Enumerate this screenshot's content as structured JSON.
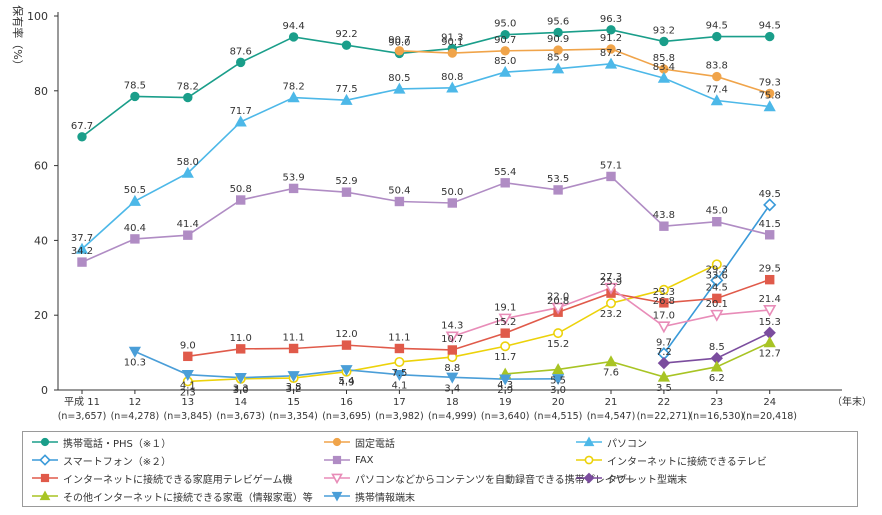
{
  "chart_data": {
    "type": "line",
    "ylabel": "保有率（%）",
    "xunit": "（年末）",
    "ylim": [
      0,
      100
    ],
    "yticks": [
      0,
      20,
      40,
      60,
      80,
      100
    ],
    "categories": [
      "平成 11",
      "12",
      "13",
      "14",
      "15",
      "16",
      "17",
      "18",
      "19",
      "20",
      "21",
      "22",
      "23",
      "24"
    ],
    "sample_sizes": [
      "(n=3,657)",
      "(n=4,278)",
      "(n=3,845)",
      "(n=3,673)",
      "(n=3,354)",
      "(n=3,695)",
      "(n=3,982)",
      "(n=4,999)",
      "(n=3,640)",
      "(n=4,515)",
      "(n=4,547)",
      "(n=22,271)",
      "(n=16,530)",
      "(n=20,418)"
    ],
    "series": [
      {
        "name": "携帯電話・PHS（※１）",
        "color": "#1a9e8a",
        "marker": "circle",
        "filled": true,
        "values": [
          67.7,
          78.5,
          78.2,
          87.6,
          94.4,
          92.2,
          90.0,
          91.3,
          95.0,
          95.6,
          96.3,
          93.2,
          94.5,
          94.5
        ]
      },
      {
        "name": "固定電話",
        "color": "#f0a44a",
        "marker": "circle",
        "filled": true,
        "values": [
          null,
          null,
          null,
          null,
          null,
          null,
          90.7,
          90.1,
          90.7,
          90.9,
          91.2,
          85.8,
          83.8,
          79.3
        ]
      },
      {
        "name": "パソコン",
        "color": "#4db8e8",
        "marker": "triangle",
        "filled": true,
        "values": [
          37.7,
          50.5,
          58.0,
          71.7,
          78.2,
          77.5,
          80.5,
          80.8,
          85.0,
          85.9,
          87.2,
          83.4,
          77.4,
          75.8
        ]
      },
      {
        "name": "スマートフォン（※２）",
        "color": "#3a9ad9",
        "marker": "diamond",
        "filled": false,
        "values": [
          null,
          null,
          null,
          null,
          null,
          null,
          null,
          null,
          null,
          null,
          null,
          9.7,
          29.3,
          49.5
        ]
      },
      {
        "name": "FAX",
        "color": "#b08cc4",
        "marker": "square",
        "filled": true,
        "values": [
          34.2,
          40.4,
          41.4,
          50.8,
          53.9,
          52.9,
          50.4,
          50.0,
          55.4,
          53.5,
          57.1,
          43.8,
          45.0,
          41.5
        ]
      },
      {
        "name": "インターネットに接続できるテレビ",
        "color": "#ecd20a",
        "marker": "circle",
        "filled": false,
        "values": [
          null,
          null,
          2.3,
          3.0,
          3.2,
          4.9,
          7.5,
          8.8,
          11.7,
          15.2,
          23.2,
          26.8,
          33.6,
          null
        ]
      },
      {
        "name": "インターネットに接続できる家庭用テレビゲーム機",
        "color": "#e05a4a",
        "marker": "square",
        "filled": true,
        "values": [
          null,
          null,
          9.0,
          11.0,
          11.1,
          12.0,
          11.1,
          10.7,
          15.2,
          20.8,
          25.9,
          23.3,
          24.5,
          29.5
        ]
      },
      {
        "name": "パソコンなどからコンテンツを自動録音できる携帯プレイヤー",
        "color": "#e88cb8",
        "marker": "triangle-down",
        "filled": false,
        "values": [
          null,
          null,
          null,
          null,
          null,
          null,
          null,
          14.3,
          19.1,
          22.0,
          27.3,
          17.0,
          20.1,
          21.4
        ]
      },
      {
        "name": "タブレット型端末",
        "color": "#7b4d9e",
        "marker": "diamond",
        "filled": true,
        "values": [
          null,
          null,
          null,
          null,
          null,
          null,
          null,
          null,
          null,
          null,
          null,
          7.2,
          8.5,
          15.3
        ]
      },
      {
        "name": "その他インターネットに接続できる家電（情報家電）等",
        "color": "#a8c424",
        "marker": "triangle",
        "filled": true,
        "values": [
          null,
          null,
          null,
          null,
          null,
          null,
          null,
          null,
          4.3,
          5.5,
          7.6,
          3.5,
          6.2,
          12.7
        ]
      },
      {
        "name": "携帯情報端末",
        "color": "#4a9ed8",
        "marker": "triangle-down",
        "filled": true,
        "values": [
          null,
          10.3,
          4.1,
          3.3,
          3.8,
          5.4,
          4.1,
          3.4,
          2.9,
          3.0,
          null,
          null,
          null,
          null
        ]
      }
    ],
    "data_labels": [
      {
        "s": 0,
        "i": 0,
        "t": "67.7"
      },
      {
        "s": 0,
        "i": 1,
        "t": "78.5"
      },
      {
        "s": 0,
        "i": 2,
        "t": "78.2"
      },
      {
        "s": 0,
        "i": 3,
        "t": "87.6"
      },
      {
        "s": 0,
        "i": 4,
        "t": "94.4"
      },
      {
        "s": 0,
        "i": 5,
        "t": "92.2"
      },
      {
        "s": 0,
        "i": 6,
        "t": "90.0"
      },
      {
        "s": 0,
        "i": 7,
        "t": "91.3"
      },
      {
        "s": 0,
        "i": 8,
        "t": "95.0"
      },
      {
        "s": 0,
        "i": 9,
        "t": "95.6"
      },
      {
        "s": 0,
        "i": 10,
        "t": "96.3"
      },
      {
        "s": 0,
        "i": 11,
        "t": "93.2"
      },
      {
        "s": 0,
        "i": 12,
        "t": "94.5"
      },
      {
        "s": 0,
        "i": 13,
        "t": "94.5"
      },
      {
        "s": 1,
        "i": 6,
        "t": "90.7"
      },
      {
        "s": 1,
        "i": 7,
        "t": "90.1"
      },
      {
        "s": 1,
        "i": 8,
        "t": "90.7"
      },
      {
        "s": 1,
        "i": 9,
        "t": "90.9"
      },
      {
        "s": 1,
        "i": 10,
        "t": "91.2"
      },
      {
        "s": 1,
        "i": 11,
        "t": "85.8"
      },
      {
        "s": 1,
        "i": 12,
        "t": "83.8"
      },
      {
        "s": 1,
        "i": 13,
        "t": "79.3"
      },
      {
        "s": 2,
        "i": 0,
        "t": "37.7"
      },
      {
        "s": 2,
        "i": 1,
        "t": "50.5"
      },
      {
        "s": 2,
        "i": 2,
        "t": "58.0"
      },
      {
        "s": 2,
        "i": 3,
        "t": "71.7"
      },
      {
        "s": 2,
        "i": 4,
        "t": "78.2"
      },
      {
        "s": 2,
        "i": 5,
        "t": "77.5"
      },
      {
        "s": 2,
        "i": 6,
        "t": "80.5"
      },
      {
        "s": 2,
        "i": 7,
        "t": "80.8"
      },
      {
        "s": 2,
        "i": 8,
        "t": "85.0"
      },
      {
        "s": 2,
        "i": 9,
        "t": "85.9"
      },
      {
        "s": 2,
        "i": 10,
        "t": "87.2"
      },
      {
        "s": 2,
        "i": 11,
        "t": "83.4"
      },
      {
        "s": 2,
        "i": 12,
        "t": "77.4"
      },
      {
        "s": 2,
        "i": 13,
        "t": "75.8"
      },
      {
        "s": 3,
        "i": 11,
        "t": "9.7"
      },
      {
        "s": 3,
        "i": 12,
        "t": "29.3"
      },
      {
        "s": 3,
        "i": 13,
        "t": "49.5"
      },
      {
        "s": 4,
        "i": 0,
        "t": "34.2"
      },
      {
        "s": 4,
        "i": 1,
        "t": "40.4"
      },
      {
        "s": 4,
        "i": 2,
        "t": "41.4"
      },
      {
        "s": 4,
        "i": 3,
        "t": "50.8"
      },
      {
        "s": 4,
        "i": 4,
        "t": "53.9"
      },
      {
        "s": 4,
        "i": 5,
        "t": "52.9"
      },
      {
        "s": 4,
        "i": 6,
        "t": "50.4"
      },
      {
        "s": 4,
        "i": 7,
        "t": "50.0"
      },
      {
        "s": 4,
        "i": 8,
        "t": "55.4"
      },
      {
        "s": 4,
        "i": 9,
        "t": "53.5"
      },
      {
        "s": 4,
        "i": 10,
        "t": "57.1"
      },
      {
        "s": 4,
        "i": 11,
        "t": "43.8"
      },
      {
        "s": 4,
        "i": 12,
        "t": "45.0"
      },
      {
        "s": 4,
        "i": 13,
        "t": "41.5"
      },
      {
        "s": 5,
        "i": 2,
        "t": "2.3"
      },
      {
        "s": 5,
        "i": 3,
        "t": "3.0"
      },
      {
        "s": 5,
        "i": 4,
        "t": "3.2"
      },
      {
        "s": 5,
        "i": 5,
        "t": "4.9"
      },
      {
        "s": 5,
        "i": 6,
        "t": "7.5"
      },
      {
        "s": 5,
        "i": 7,
        "t": "8.8"
      },
      {
        "s": 5,
        "i": 8,
        "t": "11.7"
      },
      {
        "s": 5,
        "i": 9,
        "t": "15.2"
      },
      {
        "s": 5,
        "i": 10,
        "t": "23.2"
      },
      {
        "s": 5,
        "i": 11,
        "t": "26.8"
      },
      {
        "s": 5,
        "i": 12,
        "t": "33.6"
      },
      {
        "s": 6,
        "i": 2,
        "t": "9.0"
      },
      {
        "s": 6,
        "i": 3,
        "t": "11.0"
      },
      {
        "s": 6,
        "i": 4,
        "t": "11.1"
      },
      {
        "s": 6,
        "i": 5,
        "t": "12.0"
      },
      {
        "s": 6,
        "i": 6,
        "t": "11.1"
      },
      {
        "s": 6,
        "i": 7,
        "t": "10.7"
      },
      {
        "s": 6,
        "i": 8,
        "t": "15.2"
      },
      {
        "s": 6,
        "i": 9,
        "t": "20.8"
      },
      {
        "s": 6,
        "i": 10,
        "t": "25.9"
      },
      {
        "s": 6,
        "i": 11,
        "t": "23.3"
      },
      {
        "s": 6,
        "i": 12,
        "t": "24.5"
      },
      {
        "s": 6,
        "i": 13,
        "t": "29.5"
      },
      {
        "s": 7,
        "i": 7,
        "t": "14.3"
      },
      {
        "s": 7,
        "i": 8,
        "t": "19.1"
      },
      {
        "s": 7,
        "i": 9,
        "t": "22.0"
      },
      {
        "s": 7,
        "i": 10,
        "t": "27.3"
      },
      {
        "s": 7,
        "i": 11,
        "t": "17.0"
      },
      {
        "s": 7,
        "i": 12,
        "t": "20.1"
      },
      {
        "s": 7,
        "i": 13,
        "t": "21.4"
      },
      {
        "s": 8,
        "i": 11,
        "t": "7.2"
      },
      {
        "s": 8,
        "i": 12,
        "t": "8.5"
      },
      {
        "s": 8,
        "i": 13,
        "t": "15.3"
      },
      {
        "s": 9,
        "i": 8,
        "t": "4.3"
      },
      {
        "s": 9,
        "i": 9,
        "t": "5.5"
      },
      {
        "s": 9,
        "i": 10,
        "t": "7.6"
      },
      {
        "s": 9,
        "i": 11,
        "t": "3.5"
      },
      {
        "s": 9,
        "i": 12,
        "t": "6.2"
      },
      {
        "s": 9,
        "i": 13,
        "t": "12.7"
      },
      {
        "s": 10,
        "i": 1,
        "t": "10.3"
      },
      {
        "s": 10,
        "i": 2,
        "t": "4.1"
      },
      {
        "s": 10,
        "i": 3,
        "t": "3.3"
      },
      {
        "s": 10,
        "i": 4,
        "t": "3.8"
      },
      {
        "s": 10,
        "i": 5,
        "t": "5.4"
      },
      {
        "s": 10,
        "i": 6,
        "t": "4.1"
      },
      {
        "s": 10,
        "i": 7,
        "t": "3.4"
      },
      {
        "s": 10,
        "i": 8,
        "t": "2.9"
      },
      {
        "s": 10,
        "i": 9,
        "t": "3.0"
      }
    ],
    "grid": false,
    "legend": "bottom"
  },
  "legend_rows": [
    [
      0,
      1,
      2
    ],
    [
      3,
      4,
      5
    ],
    [
      6,
      7,
      8
    ],
    [
      9,
      10
    ]
  ]
}
